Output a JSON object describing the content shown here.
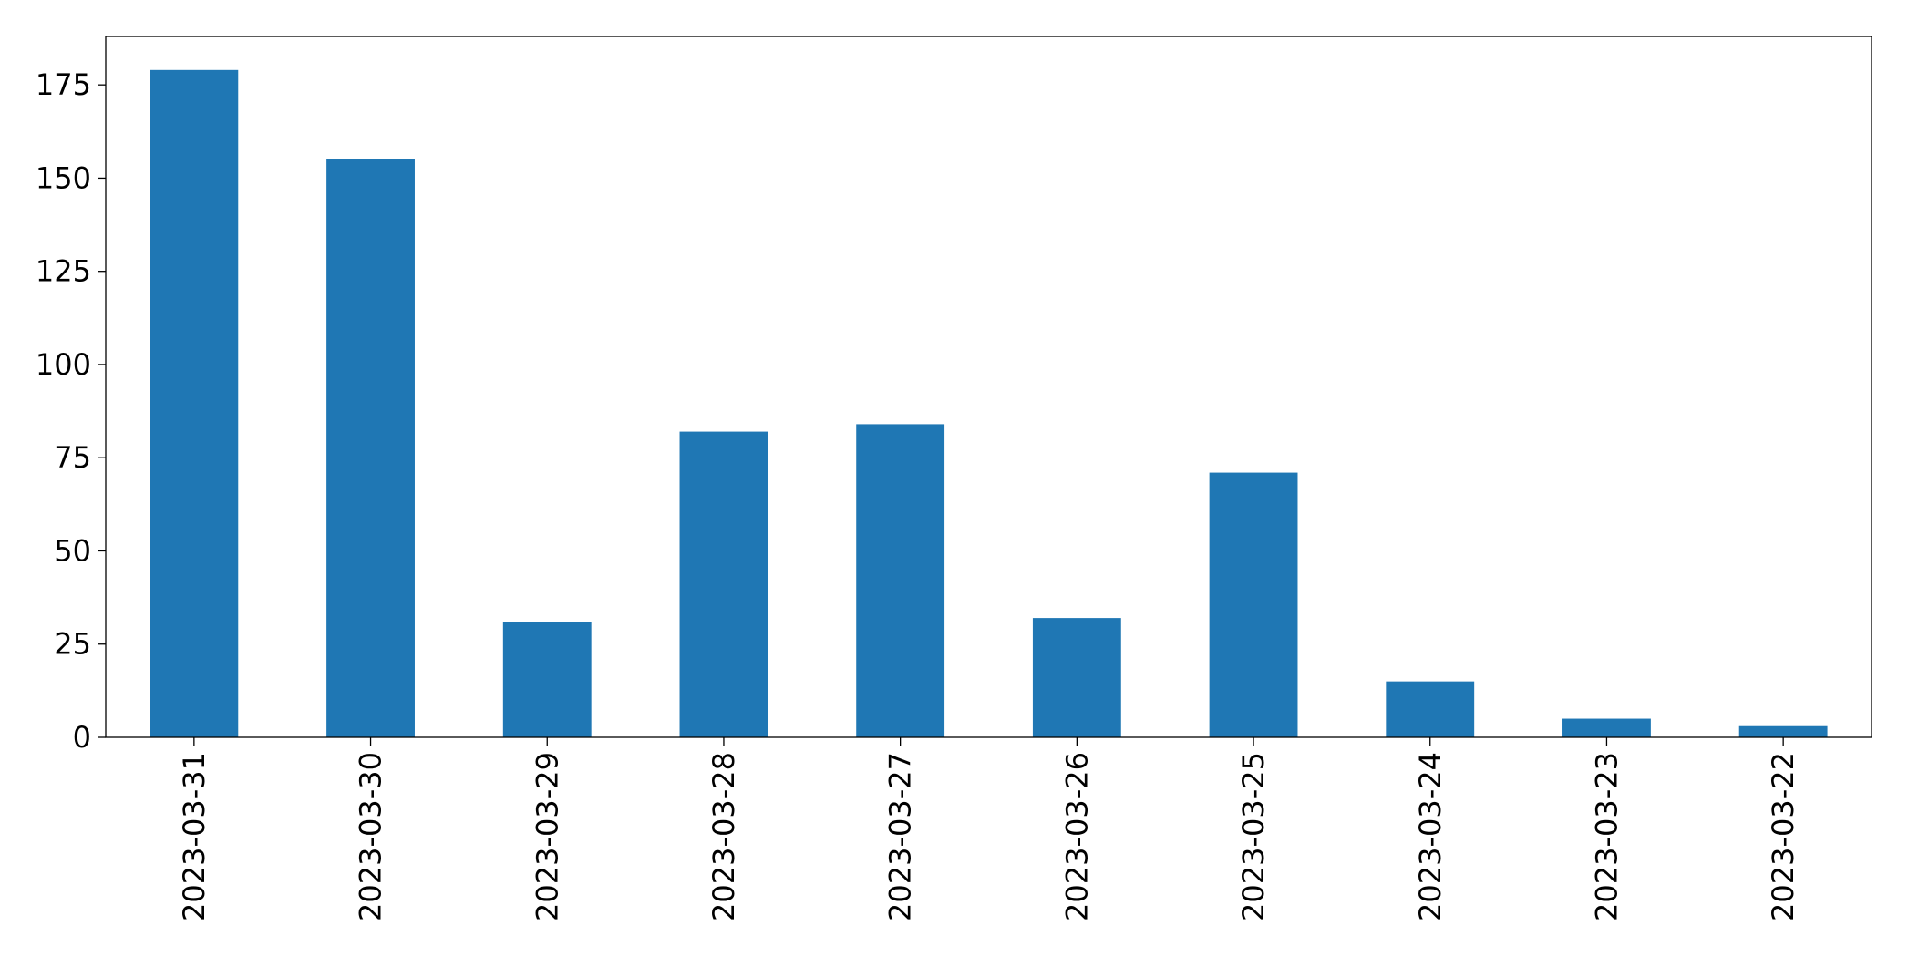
{
  "chart_data": {
    "type": "bar",
    "categories": [
      "2023-03-31",
      "2023-03-30",
      "2023-03-29",
      "2023-03-28",
      "2023-03-27",
      "2023-03-26",
      "2023-03-25",
      "2023-03-24",
      "2023-03-23",
      "2023-03-22"
    ],
    "values": [
      179,
      155,
      31,
      82,
      84,
      32,
      71,
      15,
      5,
      3
    ],
    "color": "#1f77b4",
    "ylim": [
      0,
      188
    ],
    "yticks": [
      0,
      25,
      50,
      75,
      100,
      125,
      150,
      175
    ],
    "grid": false
  }
}
